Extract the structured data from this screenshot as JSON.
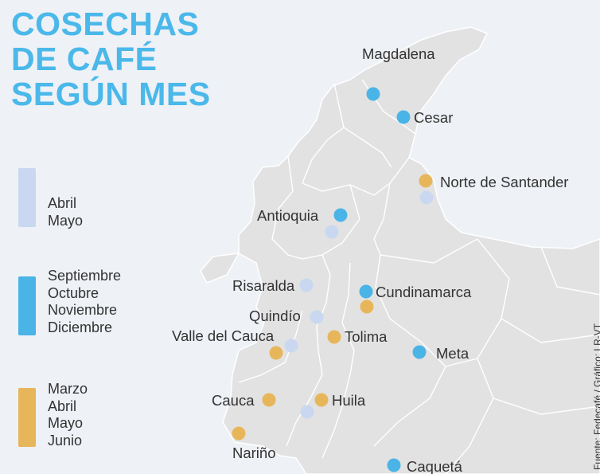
{
  "title": {
    "line1": "COSECHAS",
    "line2": "DE CAFÉ",
    "line3": "SEGÚN MES"
  },
  "colors": {
    "light": "#c9d8f0",
    "blue": "#4bb4e6",
    "orange": "#e8b65a",
    "land": "#e2e2e2",
    "border": "#ffffff",
    "background": "#eef1f6",
    "title": "#4bb8ea"
  },
  "legend": [
    {
      "key": "light",
      "months": [
        "Abril",
        "Mayo"
      ]
    },
    {
      "key": "blue",
      "months": [
        "Septiembre",
        "Octubre",
        "Noviembre",
        "Diciembre"
      ]
    },
    {
      "key": "orange",
      "months": [
        "Marzo",
        "Abril",
        "Mayo",
        "Junio"
      ]
    }
  ],
  "departments": [
    {
      "name": "Magdalena",
      "harvests": [
        "blue"
      ]
    },
    {
      "name": "Cesar",
      "harvests": [
        "blue"
      ]
    },
    {
      "name": "Norte de Santander",
      "harvests": [
        "orange",
        "light"
      ]
    },
    {
      "name": "Antioquia",
      "harvests": [
        "blue",
        "light"
      ]
    },
    {
      "name": "Risaralda",
      "harvests": [
        "light"
      ]
    },
    {
      "name": "Cundinamarca",
      "harvests": [
        "blue",
        "orange"
      ]
    },
    {
      "name": "Quindío",
      "harvests": [
        "light"
      ]
    },
    {
      "name": "Valle del Cauca",
      "harvests": [
        "light",
        "orange"
      ]
    },
    {
      "name": "Tolima",
      "harvests": [
        "orange"
      ]
    },
    {
      "name": "Meta",
      "harvests": [
        "blue"
      ]
    },
    {
      "name": "Cauca",
      "harvests": [
        "orange"
      ]
    },
    {
      "name": "Huila",
      "harvests": [
        "orange",
        "light"
      ]
    },
    {
      "name": "Nariño",
      "harvests": [
        "orange"
      ]
    },
    {
      "name": "Caquetá",
      "harvests": [
        "blue"
      ]
    }
  ],
  "source": "Fuente: Fedecafé / Gráfico: LR-VT"
}
